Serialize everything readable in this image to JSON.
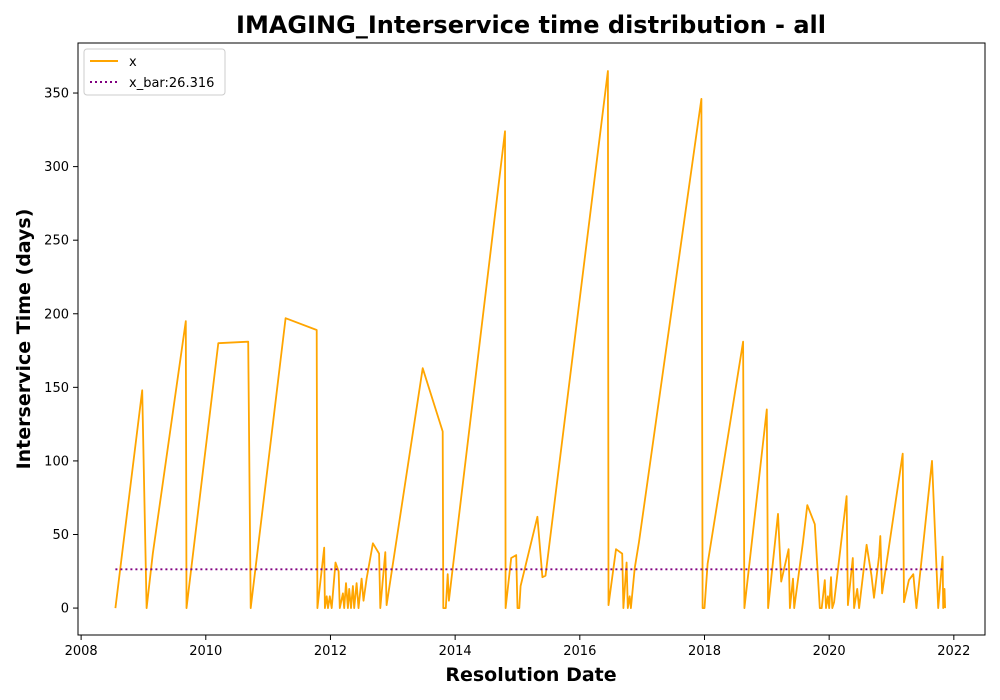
{
  "chart_data": {
    "type": "line",
    "title": "IMAGING_Interservice time distribution - all",
    "xlabel": "Resolution Date",
    "ylabel": "Interservice Time (days)",
    "xlim": [
      2007.95,
      2022.5
    ],
    "ylim": [
      -18.3,
      384
    ],
    "x_ticks": [
      2008,
      2010,
      2012,
      2014,
      2016,
      2018,
      2020,
      2022
    ],
    "y_ticks": [
      0,
      50,
      100,
      150,
      200,
      250,
      300,
      350
    ],
    "grid": false,
    "legend_position": "top-left",
    "series": [
      {
        "name": "x",
        "color": "#ffa500",
        "style": "solid",
        "points": [
          [
            2008.55,
            0
          ],
          [
            2008.98,
            148
          ],
          [
            2009.05,
            0
          ],
          [
            2009.15,
            37
          ],
          [
            2009.68,
            195
          ],
          [
            2009.69,
            0
          ],
          [
            2010.2,
            180
          ],
          [
            2010.68,
            181
          ],
          [
            2010.72,
            0
          ],
          [
            2011.28,
            197
          ],
          [
            2011.78,
            189
          ],
          [
            2011.79,
            0
          ],
          [
            2011.9,
            41
          ],
          [
            2011.91,
            0
          ],
          [
            2011.94,
            8
          ],
          [
            2011.96,
            0
          ],
          [
            2011.99,
            8
          ],
          [
            2012.02,
            0
          ],
          [
            2012.08,
            31
          ],
          [
            2012.13,
            25
          ],
          [
            2012.15,
            0
          ],
          [
            2012.2,
            10
          ],
          [
            2012.22,
            0
          ],
          [
            2012.25,
            17
          ],
          [
            2012.28,
            0
          ],
          [
            2012.3,
            13
          ],
          [
            2012.33,
            0
          ],
          [
            2012.36,
            15
          ],
          [
            2012.38,
            0
          ],
          [
            2012.42,
            17
          ],
          [
            2012.45,
            0
          ],
          [
            2012.5,
            20
          ],
          [
            2012.53,
            5
          ],
          [
            2012.58,
            20
          ],
          [
            2012.68,
            44
          ],
          [
            2012.78,
            37
          ],
          [
            2012.8,
            0
          ],
          [
            2012.88,
            38
          ],
          [
            2012.9,
            2
          ],
          [
            2013.48,
            163
          ],
          [
            2013.8,
            120
          ],
          [
            2013.81,
            0
          ],
          [
            2013.85,
            0
          ],
          [
            2013.88,
            23
          ],
          [
            2013.9,
            5
          ],
          [
            2013.95,
            23
          ],
          [
            2014.8,
            324
          ],
          [
            2014.81,
            0
          ],
          [
            2014.9,
            34
          ],
          [
            2014.98,
            36
          ],
          [
            2015.0,
            0
          ],
          [
            2015.03,
            0
          ],
          [
            2015.05,
            15
          ],
          [
            2015.32,
            62
          ],
          [
            2015.4,
            21
          ],
          [
            2015.45,
            22
          ],
          [
            2016.45,
            365
          ],
          [
            2016.46,
            2
          ],
          [
            2016.58,
            40
          ],
          [
            2016.68,
            37
          ],
          [
            2016.7,
            0
          ],
          [
            2016.75,
            31
          ],
          [
            2016.77,
            0
          ],
          [
            2016.8,
            8
          ],
          [
            2016.82,
            0
          ],
          [
            2016.88,
            27
          ],
          [
            2016.95,
            45
          ],
          [
            2017.95,
            346
          ],
          [
            2017.97,
            0
          ],
          [
            2018.0,
            0
          ],
          [
            2018.05,
            30
          ],
          [
            2018.62,
            181
          ],
          [
            2018.64,
            0
          ],
          [
            2019.0,
            135
          ],
          [
            2019.02,
            0
          ],
          [
            2019.18,
            64
          ],
          [
            2019.23,
            18
          ],
          [
            2019.35,
            40
          ],
          [
            2019.37,
            0
          ],
          [
            2019.42,
            20
          ],
          [
            2019.44,
            0
          ],
          [
            2019.58,
            45
          ],
          [
            2019.65,
            70
          ],
          [
            2019.77,
            57
          ],
          [
            2019.85,
            0
          ],
          [
            2019.88,
            0
          ],
          [
            2019.93,
            19
          ],
          [
            2019.95,
            0
          ],
          [
            2019.98,
            8
          ],
          [
            2020.0,
            0
          ],
          [
            2020.03,
            21
          ],
          [
            2020.05,
            0
          ],
          [
            2020.08,
            4
          ],
          [
            2020.28,
            76
          ],
          [
            2020.3,
            2
          ],
          [
            2020.38,
            34
          ],
          [
            2020.4,
            0
          ],
          [
            2020.45,
            13
          ],
          [
            2020.48,
            0
          ],
          [
            2020.6,
            43
          ],
          [
            2020.68,
            22
          ],
          [
            2020.72,
            7
          ],
          [
            2020.8,
            35
          ],
          [
            2020.82,
            49
          ],
          [
            2020.85,
            10
          ],
          [
            2021.18,
            105
          ],
          [
            2021.2,
            4
          ],
          [
            2021.28,
            19
          ],
          [
            2021.35,
            23
          ],
          [
            2021.4,
            0
          ],
          [
            2021.5,
            40
          ],
          [
            2021.65,
            100
          ],
          [
            2021.75,
            0
          ],
          [
            2021.82,
            35
          ],
          [
            2021.83,
            0
          ],
          [
            2021.85,
            13
          ],
          [
            2021.86,
            0
          ]
        ]
      },
      {
        "name": "x_bar:26.316",
        "color": "#800080",
        "style": "dotted",
        "points": [
          [
            2008.55,
            26.316
          ],
          [
            2021.86,
            26.316
          ]
        ]
      }
    ]
  }
}
